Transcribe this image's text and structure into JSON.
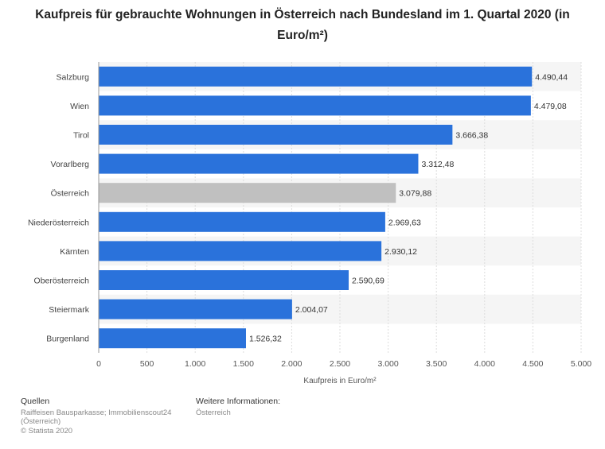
{
  "chart_data": {
    "type": "bar",
    "orientation": "horizontal",
    "title": "Kaufpreis für gebrauchte Wohnungen in Österreich nach Bundesland im 1. Quartal 2020 (in Euro/m²)",
    "xlabel": "Kaufpreis in Euro/m²",
    "ylabel": "",
    "xlim": [
      0,
      5000
    ],
    "xticks": [
      0,
      500,
      1000,
      1500,
      2000,
      2500,
      3000,
      3500,
      4000,
      4500,
      5000
    ],
    "xtick_labels": [
      "0",
      "500",
      "1.000",
      "1.500",
      "2.000",
      "2.500",
      "3.000",
      "3.500",
      "4.000",
      "4.500",
      "5.000"
    ],
    "categories": [
      "Salzburg",
      "Wien",
      "Tirol",
      "Vorarlberg",
      "Österreich",
      "Niederösterreich",
      "Kärnten",
      "Oberösterreich",
      "Steiermark",
      "Burgenland"
    ],
    "values": [
      4490.44,
      4479.08,
      3666.38,
      3312.48,
      3079.88,
      2969.63,
      2930.12,
      2590.69,
      2004.07,
      1526.32
    ],
    "value_labels": [
      "4.490,44",
      "4.479,08",
      "3.666,38",
      "3.312,48",
      "3.079,88",
      "2.969,63",
      "2.930,12",
      "2.590,69",
      "2.004,07",
      "1.526,32"
    ],
    "highlight_category": "Österreich",
    "grid": true,
    "colors": {
      "bar": "#2a72db",
      "highlight": "#c0c0c0",
      "grid": "#dddddd",
      "band": "#f5f5f5"
    }
  },
  "footer": {
    "sources_heading": "Quellen",
    "sources_lines": [
      "Raiffeisen Bausparkasse; Immobilienscout24",
      "(Österreich)",
      "© Statista 2020"
    ],
    "info_heading": "Weitere Informationen:",
    "info_lines": [
      "Österreich"
    ]
  }
}
